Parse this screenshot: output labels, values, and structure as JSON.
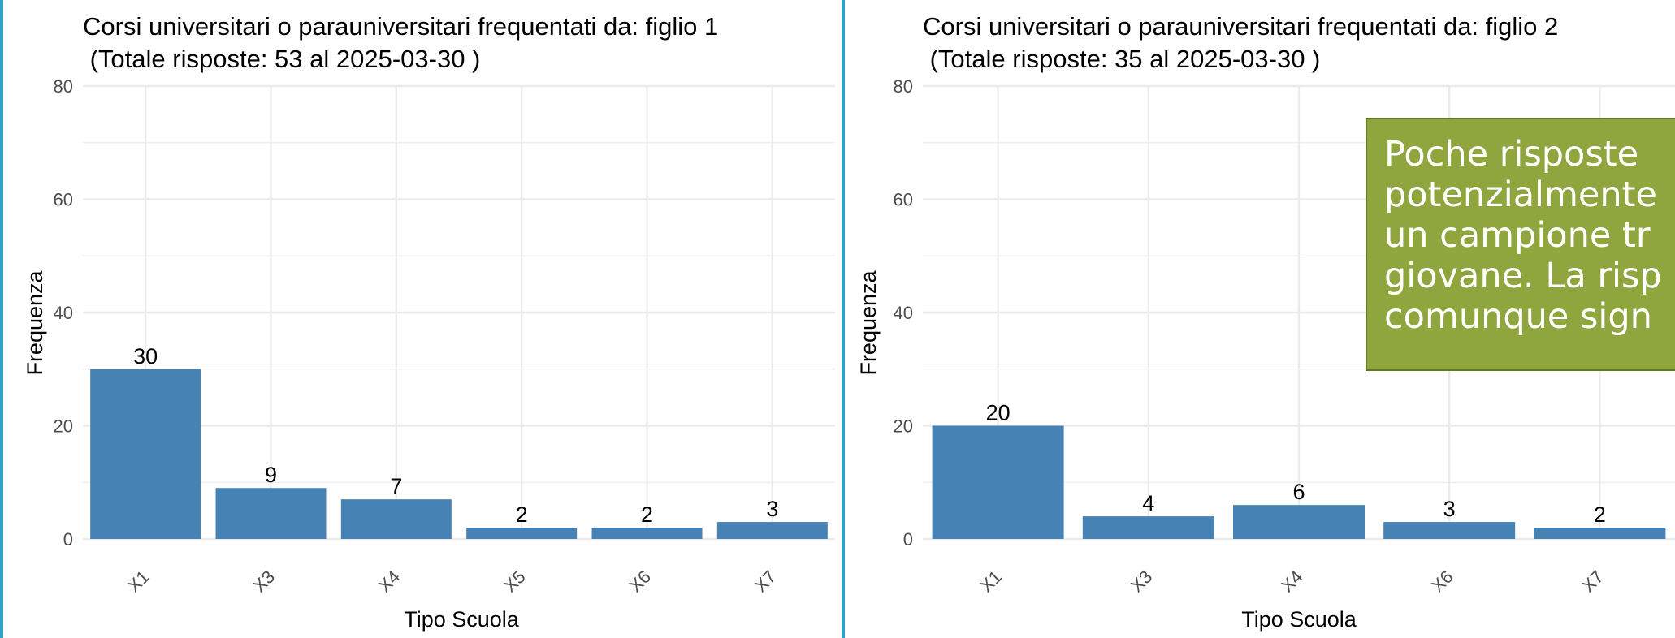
{
  "charts": [
    {
      "title_line1": "Corsi universitari o parauniversitari frequentati da: figlio 1",
      "title_line2": " (Totale risposte: 53 al 2025-03-30 )"
    },
    {
      "title_line1": "Corsi universitari o parauniversitari frequentati da: figlio 2",
      "title_line2": " (Totale risposte: 35 al 2025-03-30 )"
    }
  ],
  "callout": {
    "text": "Poche risposte\npotenzialmente\nun campione tr\ngiovane. La risp\ncomunque sign"
  },
  "colors": {
    "bar": "#4682b4",
    "grid": "#ebebeb",
    "panel_border": "#2ea3c8",
    "callout_bg": "#8fa63f",
    "callout_border": "#5f7a22"
  },
  "chart_data": [
    {
      "type": "bar",
      "title": "Corsi universitari o parauniversitari frequentati da: figlio 1 (Totale risposte: 53 al 2025-03-30 )",
      "xlabel": "Tipo Scuola",
      "ylabel": "Frequenza",
      "categories": [
        "X1",
        "X3",
        "X4",
        "X5",
        "X6",
        "X7"
      ],
      "values": [
        30,
        9,
        7,
        2,
        2,
        3
      ],
      "ylim": [
        0,
        80
      ],
      "yticks": [
        0,
        20,
        40,
        60,
        80
      ],
      "grid": true
    },
    {
      "type": "bar",
      "title": "Corsi universitari o parauniversitari frequentati da: figlio 2 (Totale risposte: 35 al 2025-03-30 )",
      "xlabel": "Tipo Scuola",
      "ylabel": "Frequenza",
      "categories": [
        "X1",
        "X3",
        "X4",
        "X6",
        "X7"
      ],
      "values": [
        20,
        4,
        6,
        3,
        2
      ],
      "ylim": [
        0,
        80
      ],
      "yticks": [
        0,
        20,
        40,
        60,
        80
      ],
      "grid": true
    }
  ]
}
